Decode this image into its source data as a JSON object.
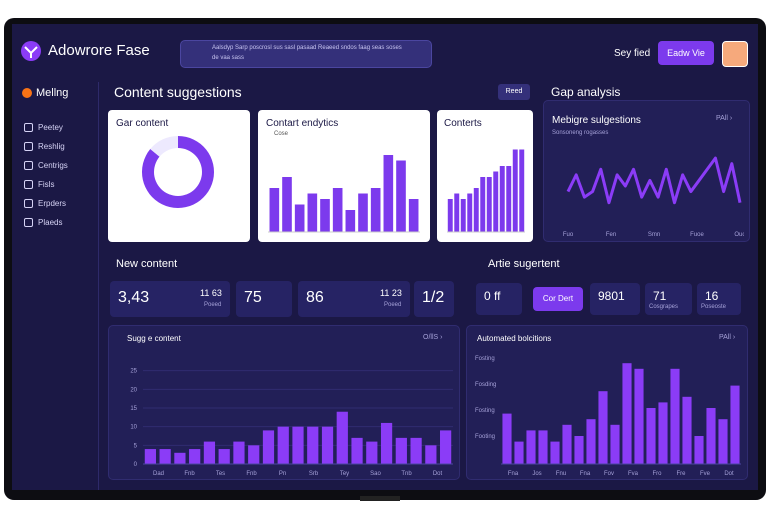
{
  "header": {
    "logo": "Adowrore Fase",
    "search": "Aalsdyp Sarp poscrosl sus sasl pasaad Reaeed sndos faag seas soses de vaa sass",
    "user": "Sey fied",
    "button": "Eadw Vie"
  },
  "sidebar": {
    "title": "Mellng",
    "items": [
      "Peetey",
      "Reshlig",
      "Centrigs",
      "Fisls",
      "Erpders",
      "Plaeds"
    ]
  },
  "suggestions": {
    "title": "Content suggestions",
    "button": "Reed"
  },
  "gap_section": {
    "title": "Gap analysis"
  },
  "new_content": {
    "title": "New content",
    "stats": [
      {
        "value": "3,43",
        "sub": "11 63",
        "note": "Poeed"
      },
      {
        "value": "75",
        "sub": "",
        "note": ""
      },
      {
        "value": "86",
        "sub": "11 23",
        "note": "Poeed"
      },
      {
        "value": "1/2",
        "sub": "",
        "note": ""
      }
    ]
  },
  "article": {
    "title": "Artie sugertent",
    "stats": [
      "0 ff",
      "9801",
      "71",
      "16"
    ],
    "notes": [
      "",
      "",
      "Cosgrapes",
      "Poseoste"
    ],
    "button": "Cor Dert"
  },
  "charts": {
    "donut": {
      "type": "pie",
      "title": "Gar content",
      "values": [
        86,
        14
      ],
      "colors": [
        "#7c3aed",
        "#ede9fe"
      ]
    },
    "analytics": {
      "type": "bar",
      "title": "Contart endytics",
      "legend": "Cose",
      "values": [
        8,
        10,
        5,
        7,
        6,
        8,
        4,
        7,
        8,
        14,
        13,
        6
      ],
      "ylim": [
        0,
        16
      ],
      "color": "#7c3aed"
    },
    "contents": {
      "type": "bar",
      "title": "Conterts",
      "values": [
        6,
        7,
        6,
        7,
        8,
        10,
        10,
        11,
        12,
        12,
        15,
        15
      ],
      "ylim": [
        0,
        16
      ],
      "color": "#7c3aed"
    },
    "gap": {
      "type": "line",
      "title": "Mebigre sulgestions",
      "subtitle": "Sonsoneng rogasses",
      "link": "PAll ›",
      "values": [
        6,
        9,
        5,
        6,
        10,
        4,
        9,
        7,
        10,
        5,
        8,
        5,
        10,
        4,
        9,
        6,
        8,
        10,
        12,
        6,
        11,
        4
      ],
      "ylim": [
        0,
        14
      ],
      "xlabels": [
        "Fuo",
        "Fen",
        "Smn",
        "Fuoe",
        "Ouo"
      ],
      "color": "#8b3cf7"
    },
    "suggest": {
      "type": "bar",
      "title": "Sugg e content",
      "link": "O/llS ›",
      "values": [
        4,
        4,
        3,
        4,
        6,
        4,
        6,
        5,
        9,
        10,
        10,
        10,
        10,
        14,
        7,
        6,
        11,
        7,
        7,
        5,
        9
      ],
      "ylim": [
        0,
        30
      ],
      "yticks": [
        0,
        5,
        10,
        15,
        20,
        25
      ],
      "xlabels": [
        "Dad",
        "Fnb",
        "Tes",
        "Fnb",
        "Pn",
        "Srb",
        "Tey",
        "Sao",
        "Tnb",
        "Dot"
      ],
      "color": "#8b3cf7"
    },
    "automated": {
      "type": "bar",
      "title": "Automated bolcitions",
      "link": "PAll ›",
      "values": [
        9,
        4,
        6,
        6,
        4,
        7,
        5,
        8,
        13,
        7,
        18,
        17,
        10,
        11,
        17,
        12,
        5,
        10,
        8,
        14
      ],
      "ylim": [
        0,
        20
      ],
      "ylabels": [
        "Fosting",
        "Fosding",
        "Fosting",
        "Footing"
      ],
      "xlabels": [
        "Fna",
        "Jos",
        "Fnu",
        "Fna",
        "Fov",
        "Fva",
        "Fro",
        "Fre",
        "Fve",
        "Dot"
      ],
      "color": "#8b3cf7"
    }
  }
}
